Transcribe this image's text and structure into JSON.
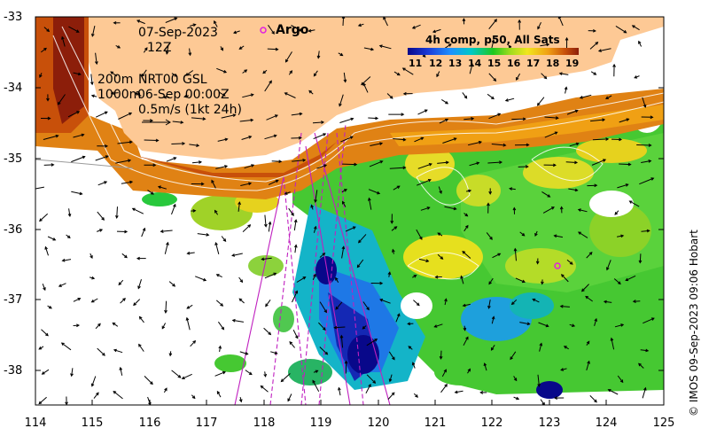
{
  "map": {
    "date": "07-Sep-2023",
    "hour": "12Z",
    "depth_line1_depth": "200m",
    "depth_line1_text": "NRT00 GSL",
    "depth_line2_depth": "1000m",
    "depth_line2_text": "06-Sep 00:00Z",
    "scale_text": "0.5m/s (1kt 24h)",
    "argo_label": "Argo",
    "colorbar_title": "4h comp, p50, All Sats",
    "colorbar_ticks": [
      "11",
      "12",
      "13",
      "14",
      "15",
      "16",
      "17",
      "18",
      "19"
    ],
    "credit": "© IMOS 09-Sep-2023 09:06 Hobart",
    "x_ticks": [
      "114",
      "115",
      "116",
      "117",
      "118",
      "119",
      "120",
      "121",
      "122",
      "123",
      "124",
      "125"
    ],
    "y_ticks": [
      "-33",
      "-34",
      "-35",
      "-36",
      "-37",
      "-38"
    ],
    "colors": {
      "land": "#fdc995",
      "argo_marker": "#e020e0",
      "track_line": "#c020c0",
      "sst_scale": [
        "#08088a",
        "#1a3cd8",
        "#1e90ff",
        "#00c8c8",
        "#1ec81e",
        "#a0dc1e",
        "#f0e61e",
        "#f0a014",
        "#c8500a",
        "#8c1e0a"
      ]
    }
  }
}
